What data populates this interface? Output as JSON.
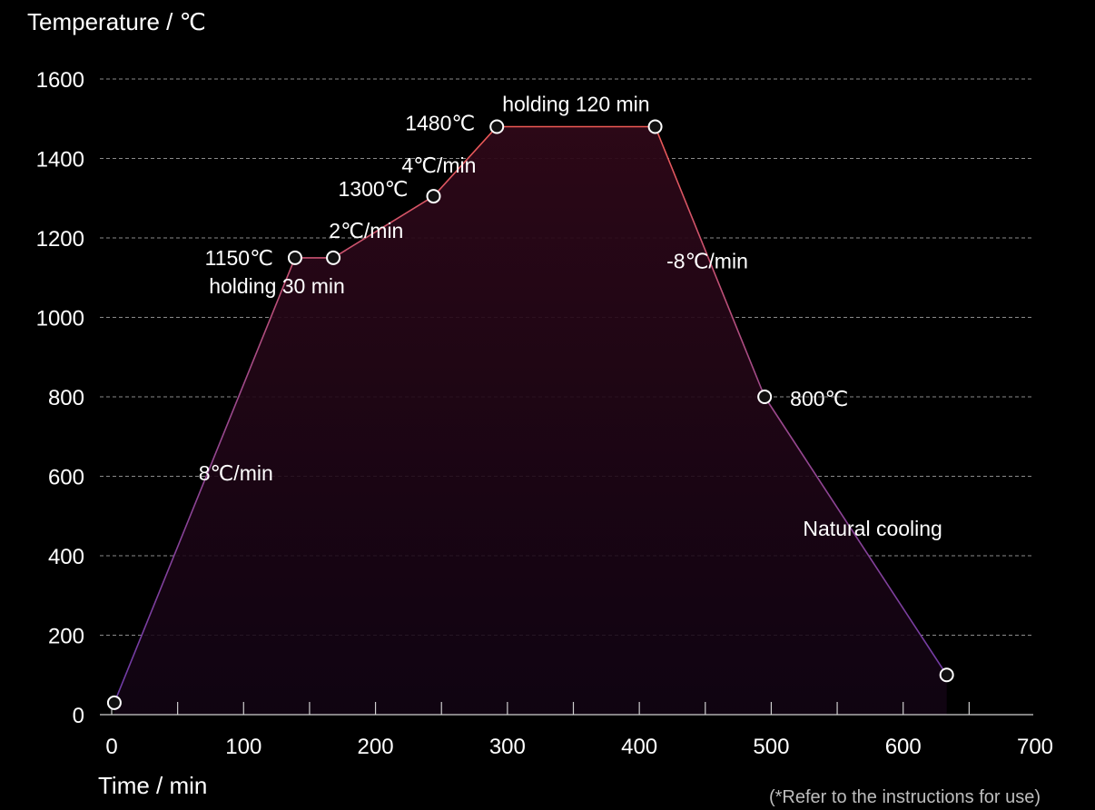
{
  "chart_data": {
    "type": "line",
    "ylabel": "Temperature / ℃",
    "xlabel": "Time / min",
    "footnote": "(*Refer to the instructions for use)",
    "xlim": [
      0,
      700
    ],
    "ylim": [
      0,
      1600
    ],
    "x_ticks": [
      0,
      100,
      200,
      300,
      400,
      500,
      600,
      700
    ],
    "y_ticks": [
      0,
      200,
      400,
      600,
      800,
      1000,
      1200,
      1400,
      1600
    ],
    "grid": "horizontal dashed",
    "colors": {
      "line_low": "#7a3fb0",
      "line_high": "#e8535a",
      "fill": "#3a0d22",
      "background": "#000000"
    },
    "series": [
      {
        "points": [
          {
            "x": 2,
            "y": 30
          },
          {
            "x": 139,
            "y": 1150
          },
          {
            "x": 168,
            "y": 1150
          },
          {
            "x": 244,
            "y": 1305
          },
          {
            "x": 292,
            "y": 1480
          },
          {
            "x": 412,
            "y": 1480
          },
          {
            "x": 495,
            "y": 800
          },
          {
            "x": 633,
            "y": 100
          }
        ]
      }
    ],
    "annotations": [
      {
        "text": "1150℃",
        "x": 139,
        "y": 1150
      },
      {
        "text": "holding 30 min",
        "x": 155,
        "y": 1150
      },
      {
        "text": "1300℃",
        "x": 244,
        "y": 1305
      },
      {
        "text": "2℃/min",
        "x": 206,
        "y": 1228
      },
      {
        "text": "1480℃",
        "x": 292,
        "y": 1480
      },
      {
        "text": "holding 120 min",
        "x": 352,
        "y": 1480
      },
      {
        "text": "4℃/min",
        "x": 268,
        "y": 1392
      },
      {
        "text": "-8℃/min",
        "x": 453,
        "y": 1140
      },
      {
        "text": "800℃",
        "x": 495,
        "y": 800
      },
      {
        "text": "Natural cooling",
        "x": 564,
        "y": 450
      },
      {
        "text": "8℃/min",
        "x": 70,
        "y": 590
      }
    ]
  }
}
